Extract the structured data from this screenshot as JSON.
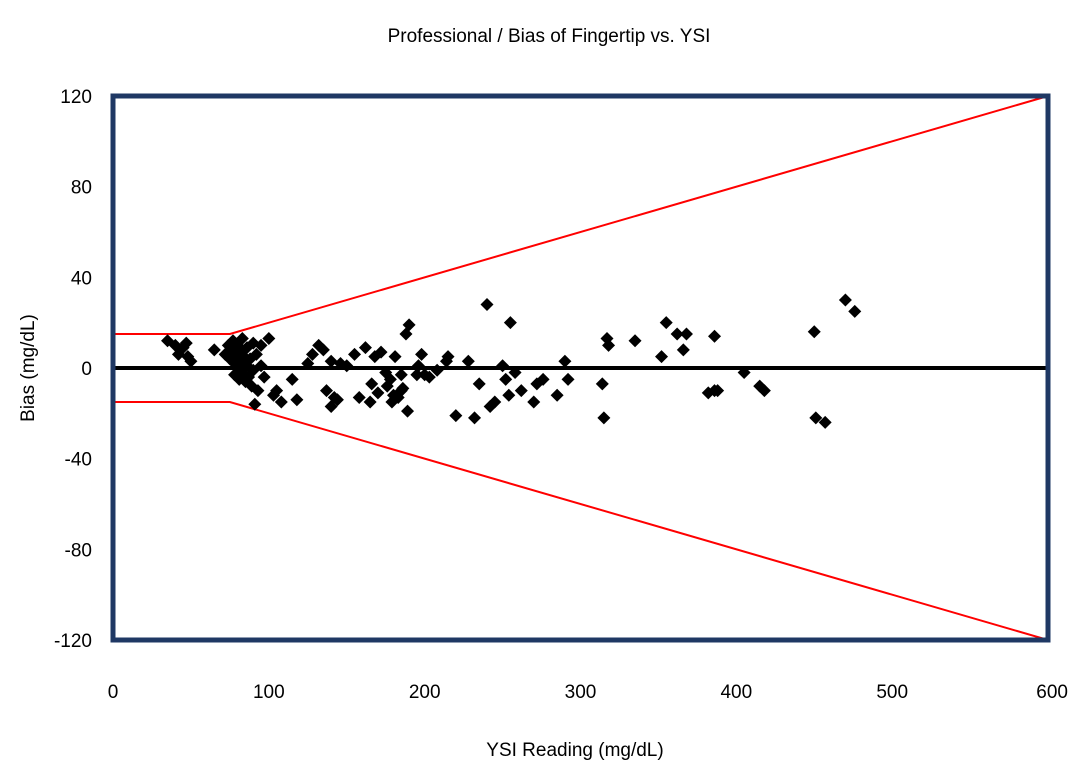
{
  "chart_data": {
    "type": "scatter",
    "title": "Professional / Bias of Fingertip vs. YSI",
    "xlabel": "YSI Reading  (mg/dL)",
    "ylabel": "Bias  (mg/dL)",
    "xlim": [
      0,
      600
    ],
    "ylim": [
      -120,
      120
    ],
    "x_ticks": [
      "0",
      "100",
      "200",
      "300",
      "400",
      "500",
      "600"
    ],
    "y_ticks": [
      "120",
      "80",
      "40",
      "0",
      "-40",
      "-80",
      "-120"
    ],
    "grid": false,
    "legend": "none",
    "marker": "diamond",
    "colors": {
      "points": "#000000",
      "zero_line": "#000000",
      "limit_lines": "#ff0000",
      "plot_border": "#1f3864"
    },
    "reference_lines": [
      {
        "name": "zero",
        "points": [
          [
            0,
            0
          ],
          [
            600,
            0
          ]
        ]
      },
      {
        "name": "upper-limit",
        "points": [
          [
            0,
            15
          ],
          [
            75,
            15
          ],
          [
            600,
            120
          ]
        ]
      },
      {
        "name": "lower-limit",
        "points": [
          [
            0,
            -15
          ],
          [
            75,
            -15
          ],
          [
            600,
            -120
          ]
        ]
      }
    ],
    "points": [
      [
        35,
        12
      ],
      [
        40,
        10
      ],
      [
        42,
        6
      ],
      [
        45,
        9
      ],
      [
        47,
        11
      ],
      [
        48,
        5
      ],
      [
        50,
        3
      ],
      [
        65,
        8
      ],
      [
        72,
        6
      ],
      [
        74,
        10
      ],
      [
        75,
        4
      ],
      [
        76,
        8
      ],
      [
        77,
        12
      ],
      [
        78,
        2
      ],
      [
        78,
        -3
      ],
      [
        79,
        6
      ],
      [
        80,
        10
      ],
      [
        80,
        0
      ],
      [
        81,
        -5
      ],
      [
        82,
        8
      ],
      [
        82,
        3
      ],
      [
        83,
        13
      ],
      [
        83,
        -2
      ],
      [
        84,
        5
      ],
      [
        85,
        -6
      ],
      [
        86,
        1
      ],
      [
        86,
        9
      ],
      [
        87,
        -4
      ],
      [
        88,
        4
      ],
      [
        89,
        -8
      ],
      [
        90,
        11
      ],
      [
        90,
        -1
      ],
      [
        91,
        -16
      ],
      [
        92,
        6
      ],
      [
        93,
        -10
      ],
      [
        95,
        1
      ],
      [
        95,
        10
      ],
      [
        97,
        -4
      ],
      [
        100,
        13
      ],
      [
        103,
        -12
      ],
      [
        105,
        -10
      ],
      [
        108,
        -15
      ],
      [
        115,
        -5
      ],
      [
        118,
        -14
      ],
      [
        125,
        2
      ],
      [
        128,
        6
      ],
      [
        132,
        10
      ],
      [
        135,
        8
      ],
      [
        137,
        -10
      ],
      [
        140,
        -17
      ],
      [
        140,
        3
      ],
      [
        142,
        -13
      ],
      [
        144,
        -14
      ],
      [
        146,
        2
      ],
      [
        150,
        1
      ],
      [
        155,
        6
      ],
      [
        158,
        -13
      ],
      [
        162,
        9
      ],
      [
        165,
        -15
      ],
      [
        166,
        -7
      ],
      [
        168,
        5
      ],
      [
        170,
        -11
      ],
      [
        172,
        7
      ],
      [
        175,
        -2
      ],
      [
        176,
        -8
      ],
      [
        178,
        -5
      ],
      [
        179,
        -15
      ],
      [
        180,
        -12
      ],
      [
        181,
        5
      ],
      [
        183,
        -13
      ],
      [
        185,
        -3
      ],
      [
        185,
        -10
      ],
      [
        186,
        -9
      ],
      [
        188,
        15
      ],
      [
        189,
        -19
      ],
      [
        190,
        19
      ],
      [
        195,
        -3
      ],
      [
        196,
        1
      ],
      [
        198,
        6
      ],
      [
        200,
        -3
      ],
      [
        203,
        -4
      ],
      [
        208,
        -1
      ],
      [
        214,
        3
      ],
      [
        215,
        5
      ],
      [
        220,
        -21
      ],
      [
        228,
        3
      ],
      [
        232,
        -22
      ],
      [
        235,
        -7
      ],
      [
        240,
        28
      ],
      [
        242,
        -17
      ],
      [
        245,
        -15
      ],
      [
        250,
        1
      ],
      [
        252,
        -5
      ],
      [
        254,
        -12
      ],
      [
        255,
        20
      ],
      [
        258,
        -2
      ],
      [
        262,
        -10
      ],
      [
        270,
        -15
      ],
      [
        272,
        -7
      ],
      [
        276,
        -5
      ],
      [
        285,
        -12
      ],
      [
        290,
        3
      ],
      [
        292,
        -5
      ],
      [
        314,
        -7
      ],
      [
        315,
        -22
      ],
      [
        317,
        13
      ],
      [
        318,
        10
      ],
      [
        335,
        12
      ],
      [
        352,
        5
      ],
      [
        355,
        20
      ],
      [
        362,
        15
      ],
      [
        366,
        8
      ],
      [
        368,
        15
      ],
      [
        382,
        -11
      ],
      [
        386,
        -10
      ],
      [
        386,
        14
      ],
      [
        388,
        -10
      ],
      [
        405,
        -2
      ],
      [
        415,
        -8
      ],
      [
        418,
        -10
      ],
      [
        450,
        16
      ],
      [
        451,
        -22
      ],
      [
        457,
        -24
      ],
      [
        470,
        30
      ],
      [
        476,
        25
      ]
    ]
  }
}
